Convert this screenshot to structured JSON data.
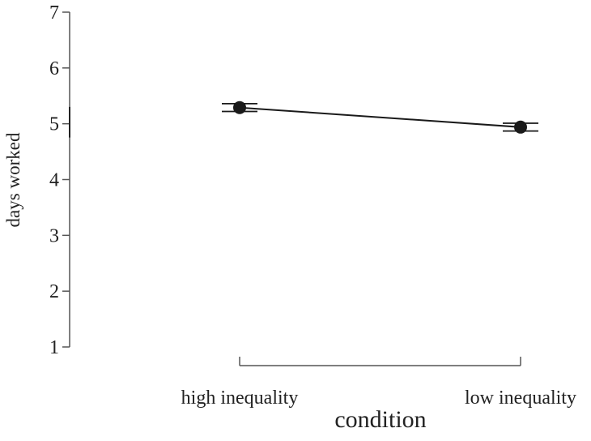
{
  "chart_data": {
    "type": "line",
    "x_label": "condition",
    "y_label": "days worked",
    "categories": [
      "high inequality",
      "low inequality"
    ],
    "values": [
      5.29,
      4.94
    ],
    "errors": [
      0.07,
      0.07
    ],
    "color": "#1a1a1a",
    "ylim": [
      1,
      7
    ],
    "yticks": [
      1,
      2,
      3,
      4,
      5,
      6,
      7
    ]
  }
}
